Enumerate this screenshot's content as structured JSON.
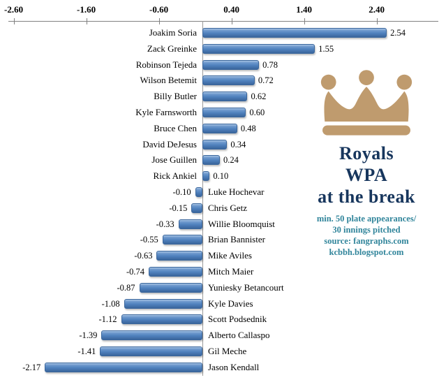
{
  "chart_data": {
    "type": "bar",
    "orientation": "horizontal",
    "categories": [
      "Joakim Soria",
      "Zack Greinke",
      "Robinson Tejeda",
      "Wilson Betemit",
      "Billy Butler",
      "Kyle Farnsworth",
      "Bruce Chen",
      "David DeJesus",
      "Jose Guillen",
      "Rick Ankiel",
      "Luke Hochevar",
      "Chris Getz",
      "Willie Bloomquist",
      "Brian Bannister",
      "Mike Aviles",
      "Mitch Maier",
      "Yuniesky Betancourt",
      "Kyle Davies",
      "Scott Podsednik",
      "Alberto Callaspo",
      "Gil Meche",
      "Jason Kendall"
    ],
    "values": [
      2.54,
      1.55,
      0.78,
      0.72,
      0.62,
      0.6,
      0.48,
      0.34,
      0.24,
      0.1,
      -0.1,
      -0.15,
      -0.33,
      -0.55,
      -0.63,
      -0.74,
      -0.87,
      -1.08,
      -1.12,
      -1.39,
      -1.41,
      -2.17
    ],
    "value_labels": [
      "2.54",
      "1.55",
      "0.78",
      "0.72",
      "0.62",
      "0.60",
      "0.48",
      "0.34",
      "0.24",
      "0.10",
      "-0.10",
      "-0.15",
      "-0.33",
      "-0.55",
      "-0.63",
      "-0.74",
      "-0.87",
      "-1.08",
      "-1.12",
      "-1.39",
      "-1.41",
      "-2.17"
    ],
    "x_ticks": [
      -2.6,
      -1.6,
      -0.6,
      0.4,
      1.4,
      2.4
    ],
    "x_tick_labels": [
      "-2.60",
      "-1.60",
      "-0.60",
      "0.40",
      "1.40",
      "2.40"
    ],
    "xlim": [
      -2.85,
      3.15
    ],
    "axis_position": "top",
    "grid": "zero-line-only",
    "bar_color": "#4f81bd",
    "legend": "none",
    "title": "Royals WPA at the break"
  },
  "annotation": {
    "crown_icon_color": "#bf9b6e",
    "title_color": "#17365d",
    "title_lines": [
      "Royals",
      "WPA",
      "at the break"
    ],
    "subtitle_color": "#31859b",
    "subtitle_lines": [
      "min. 50 plate appearances/",
      "30 innings pitched",
      "source: fangraphs.com",
      "kcbbh.blogspot.com"
    ]
  }
}
